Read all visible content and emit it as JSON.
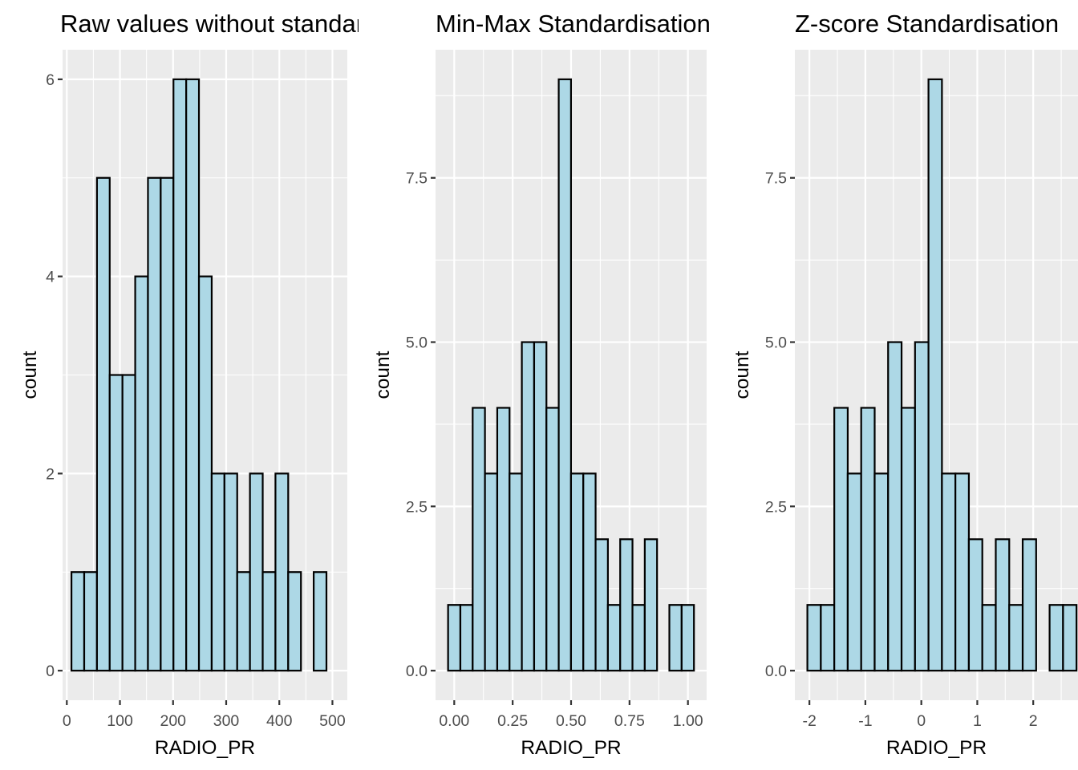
{
  "chart_data": [
    {
      "type": "bar",
      "title": "Raw values without standardisation",
      "xlabel": "RADIO_PR",
      "ylabel": "count",
      "bins_start": [
        8.75,
        32.75,
        56.75,
        80.75,
        104.75,
        128.75,
        152.75,
        176.75,
        200.75,
        224.75,
        248.75,
        272.75,
        296.75,
        320.75,
        344.75,
        368.75,
        392.75,
        416.75,
        440.75,
        464.75,
        488.75
      ],
      "bins_end": [
        32.75,
        56.75,
        80.75,
        104.75,
        128.75,
        152.75,
        176.75,
        200.75,
        224.75,
        248.75,
        272.75,
        296.75,
        320.75,
        344.75,
        368.75,
        392.75,
        416.75,
        440.75,
        464.75,
        488.75,
        512.75
      ],
      "values": [
        1,
        1,
        5,
        3,
        3,
        4,
        5,
        5,
        6,
        6,
        4,
        2,
        2,
        1,
        2,
        1,
        2,
        1,
        0,
        1
      ],
      "xlim": [
        -8,
        528
      ],
      "ylim": [
        -0.3,
        6.3
      ],
      "x_ticks": [
        0,
        100,
        200,
        300,
        400,
        500
      ],
      "x_tick_labels": [
        "0",
        "100",
        "200",
        "300",
        "400",
        "500"
      ],
      "y_ticks": [
        0,
        2,
        4,
        6
      ],
      "y_tick_labels": [
        "0",
        "2",
        "4",
        "6"
      ]
    },
    {
      "type": "bar",
      "title": "Min-Max Standardisation",
      "xlabel": "RADIO_PR",
      "ylabel": "count",
      "values": [
        1,
        1,
        4,
        3,
        4,
        3,
        5,
        5,
        4,
        9,
        3,
        3,
        2,
        1,
        2,
        1,
        2,
        0,
        1,
        1
      ],
      "bin_width": 0.0526,
      "first_bin_start": -0.0263,
      "xlim": [
        -0.08,
        1.08
      ],
      "ylim": [
        -0.45,
        9.45
      ],
      "x_ticks": [
        0,
        0.25,
        0.5,
        0.75,
        1
      ],
      "x_tick_labels": [
        "0.00",
        "0.25",
        "0.50",
        "0.75",
        "1.00"
      ],
      "y_ticks": [
        0,
        2.5,
        5,
        7.5
      ],
      "y_tick_labels": [
        "0.0",
        "2.5",
        "5.0",
        "7.5"
      ]
    },
    {
      "type": "bar",
      "title": "Z-score Standardisation",
      "xlabel": "RADIO_PR",
      "ylabel": "count",
      "values": [
        1,
        1,
        4,
        3,
        4,
        3,
        5,
        4,
        5,
        9,
        3,
        3,
        2,
        1,
        2,
        1,
        2,
        0,
        1,
        1
      ],
      "bin_width": 0.2405,
      "first_bin_start": -2.0365,
      "xlim": [
        -2.26,
        2.8
      ],
      "ylim": [
        -0.45,
        9.45
      ],
      "x_ticks": [
        -2,
        -1,
        0,
        1,
        2
      ],
      "x_tick_labels": [
        "-2",
        "-1",
        "0",
        "1",
        "2"
      ],
      "y_ticks": [
        0,
        2.5,
        5,
        7.5
      ],
      "y_tick_labels": [
        "0.0",
        "2.5",
        "5.0",
        "7.5"
      ]
    }
  ]
}
